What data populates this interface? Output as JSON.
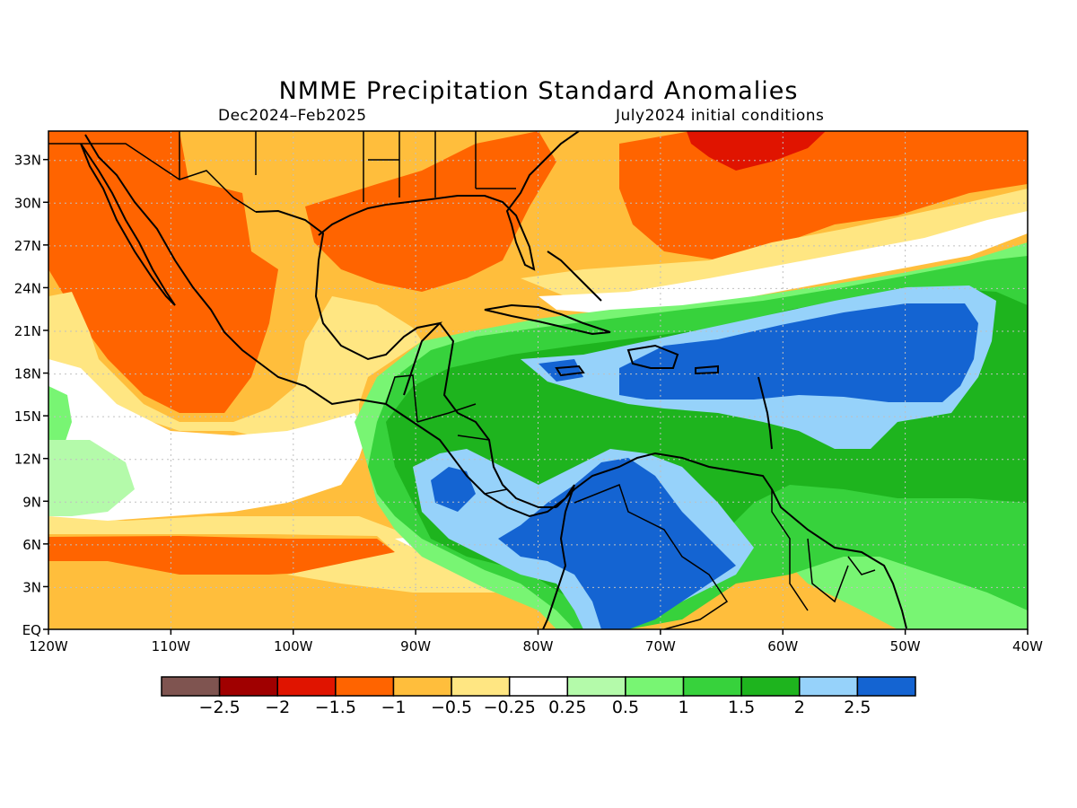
{
  "title": "NMME Precipitation Standard Anomalies",
  "subtitle_left": "Dec2024–Feb2025",
  "subtitle_right": "July2024 initial conditions",
  "lat_ticks": [
    {
      "label": "33N",
      "lat": 33
    },
    {
      "label": "30N",
      "lat": 30
    },
    {
      "label": "27N",
      "lat": 27
    },
    {
      "label": "24N",
      "lat": 24
    },
    {
      "label": "21N",
      "lat": 21
    },
    {
      "label": "18N",
      "lat": 18
    },
    {
      "label": "15N",
      "lat": 15
    },
    {
      "label": "12N",
      "lat": 12
    },
    {
      "label": "9N",
      "lat": 9
    },
    {
      "label": "6N",
      "lat": 6
    },
    {
      "label": "3N",
      "lat": 3
    },
    {
      "label": "EQ",
      "lat": 0
    }
  ],
  "lon_ticks": [
    {
      "label": "120W",
      "lon": -120
    },
    {
      "label": "110W",
      "lon": -110
    },
    {
      "label": "100W",
      "lon": -100
    },
    {
      "label": "90W",
      "lon": -90
    },
    {
      "label": "80W",
      "lon": -80
    },
    {
      "label": "70W",
      "lon": -70
    },
    {
      "label": "60W",
      "lon": -60
    },
    {
      "label": "50W",
      "lon": -50
    },
    {
      "label": "40W",
      "lon": -40
    }
  ],
  "extent": {
    "lon_min": -120,
    "lon_max": -40,
    "lat_min": 0,
    "lat_max": 35
  },
  "colorbar": {
    "colors": [
      "#7f5450",
      "#a00000",
      "#e01400",
      "#ff6400",
      "#ffbe3c",
      "#ffe682",
      "#ffffff",
      "#b4faaa",
      "#78f573",
      "#37d23c",
      "#1eb41e",
      "#96d2fa",
      "#1464d2"
    ],
    "labels": [
      "−2.5",
      "−2",
      "−1.5",
      "−1",
      "−0.5",
      "−0.25",
      "0.25",
      "0.5",
      "1",
      "1.5",
      "2",
      "2.5"
    ]
  }
}
